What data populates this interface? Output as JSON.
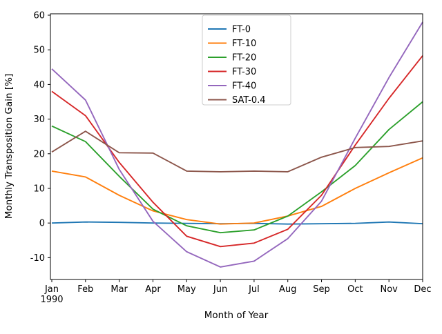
{
  "figure": {
    "background": "#ffffff"
  },
  "chart_data": {
    "type": "line",
    "title": "",
    "xlabel": "Month of Year",
    "ylabel": "Monthly Transposition Gain [%]",
    "x_tick_labels": [
      "Jan",
      "Feb",
      "Mar",
      "Apr",
      "May",
      "Jun",
      "Jul",
      "Aug",
      "Sep",
      "Oct",
      "Nov",
      "Dec"
    ],
    "x_tick_sublabels": [
      "1990",
      "",
      "",
      "",
      "",
      "",
      "",
      "",
      "",
      "",
      "",
      ""
    ],
    "y_ticks": [
      -10,
      0,
      10,
      20,
      30,
      40,
      50,
      60
    ],
    "ylim": [
      -16.3,
      60.4
    ],
    "grid": false,
    "legend_position": "upper-center-inside",
    "axis_color": "#000000",
    "legend_border_color": "#cccccc",
    "series": [
      {
        "name": "FT-0",
        "color": "#1f77b4",
        "values": [
          0.0,
          0.3,
          0.2,
          0.0,
          -0.1,
          -0.2,
          -0.1,
          -0.3,
          -0.2,
          -0.1,
          0.3,
          -0.2
        ]
      },
      {
        "name": "FT-10",
        "color": "#ff7f0e",
        "values": [
          15.0,
          13.3,
          8.0,
          3.5,
          1.0,
          -0.3,
          0.0,
          2.0,
          4.8,
          10.0,
          14.5,
          18.8
        ]
      },
      {
        "name": "FT-20",
        "color": "#2ca02c",
        "values": [
          28.0,
          23.5,
          13.5,
          4.0,
          -0.8,
          -2.8,
          -2.0,
          2.0,
          9.0,
          16.6,
          27.0,
          35.0
        ]
      },
      {
        "name": "FT-30",
        "color": "#d62728",
        "values": [
          38.0,
          31.0,
          17.5,
          6.0,
          -3.8,
          -6.8,
          -5.8,
          -1.8,
          8.0,
          22.5,
          36.0,
          48.3
        ]
      },
      {
        "name": "FT-40",
        "color": "#9467bd",
        "values": [
          44.5,
          35.5,
          15.5,
          0.5,
          -8.3,
          -12.7,
          -11.0,
          -4.5,
          6.3,
          24.5,
          42.0,
          58.0
        ]
      },
      {
        "name": "SAT-0.4",
        "color": "#8c564b",
        "values": [
          20.5,
          26.5,
          20.3,
          20.2,
          15.0,
          14.8,
          15.0,
          14.8,
          19.0,
          21.8,
          22.1,
          23.7
        ]
      }
    ]
  }
}
